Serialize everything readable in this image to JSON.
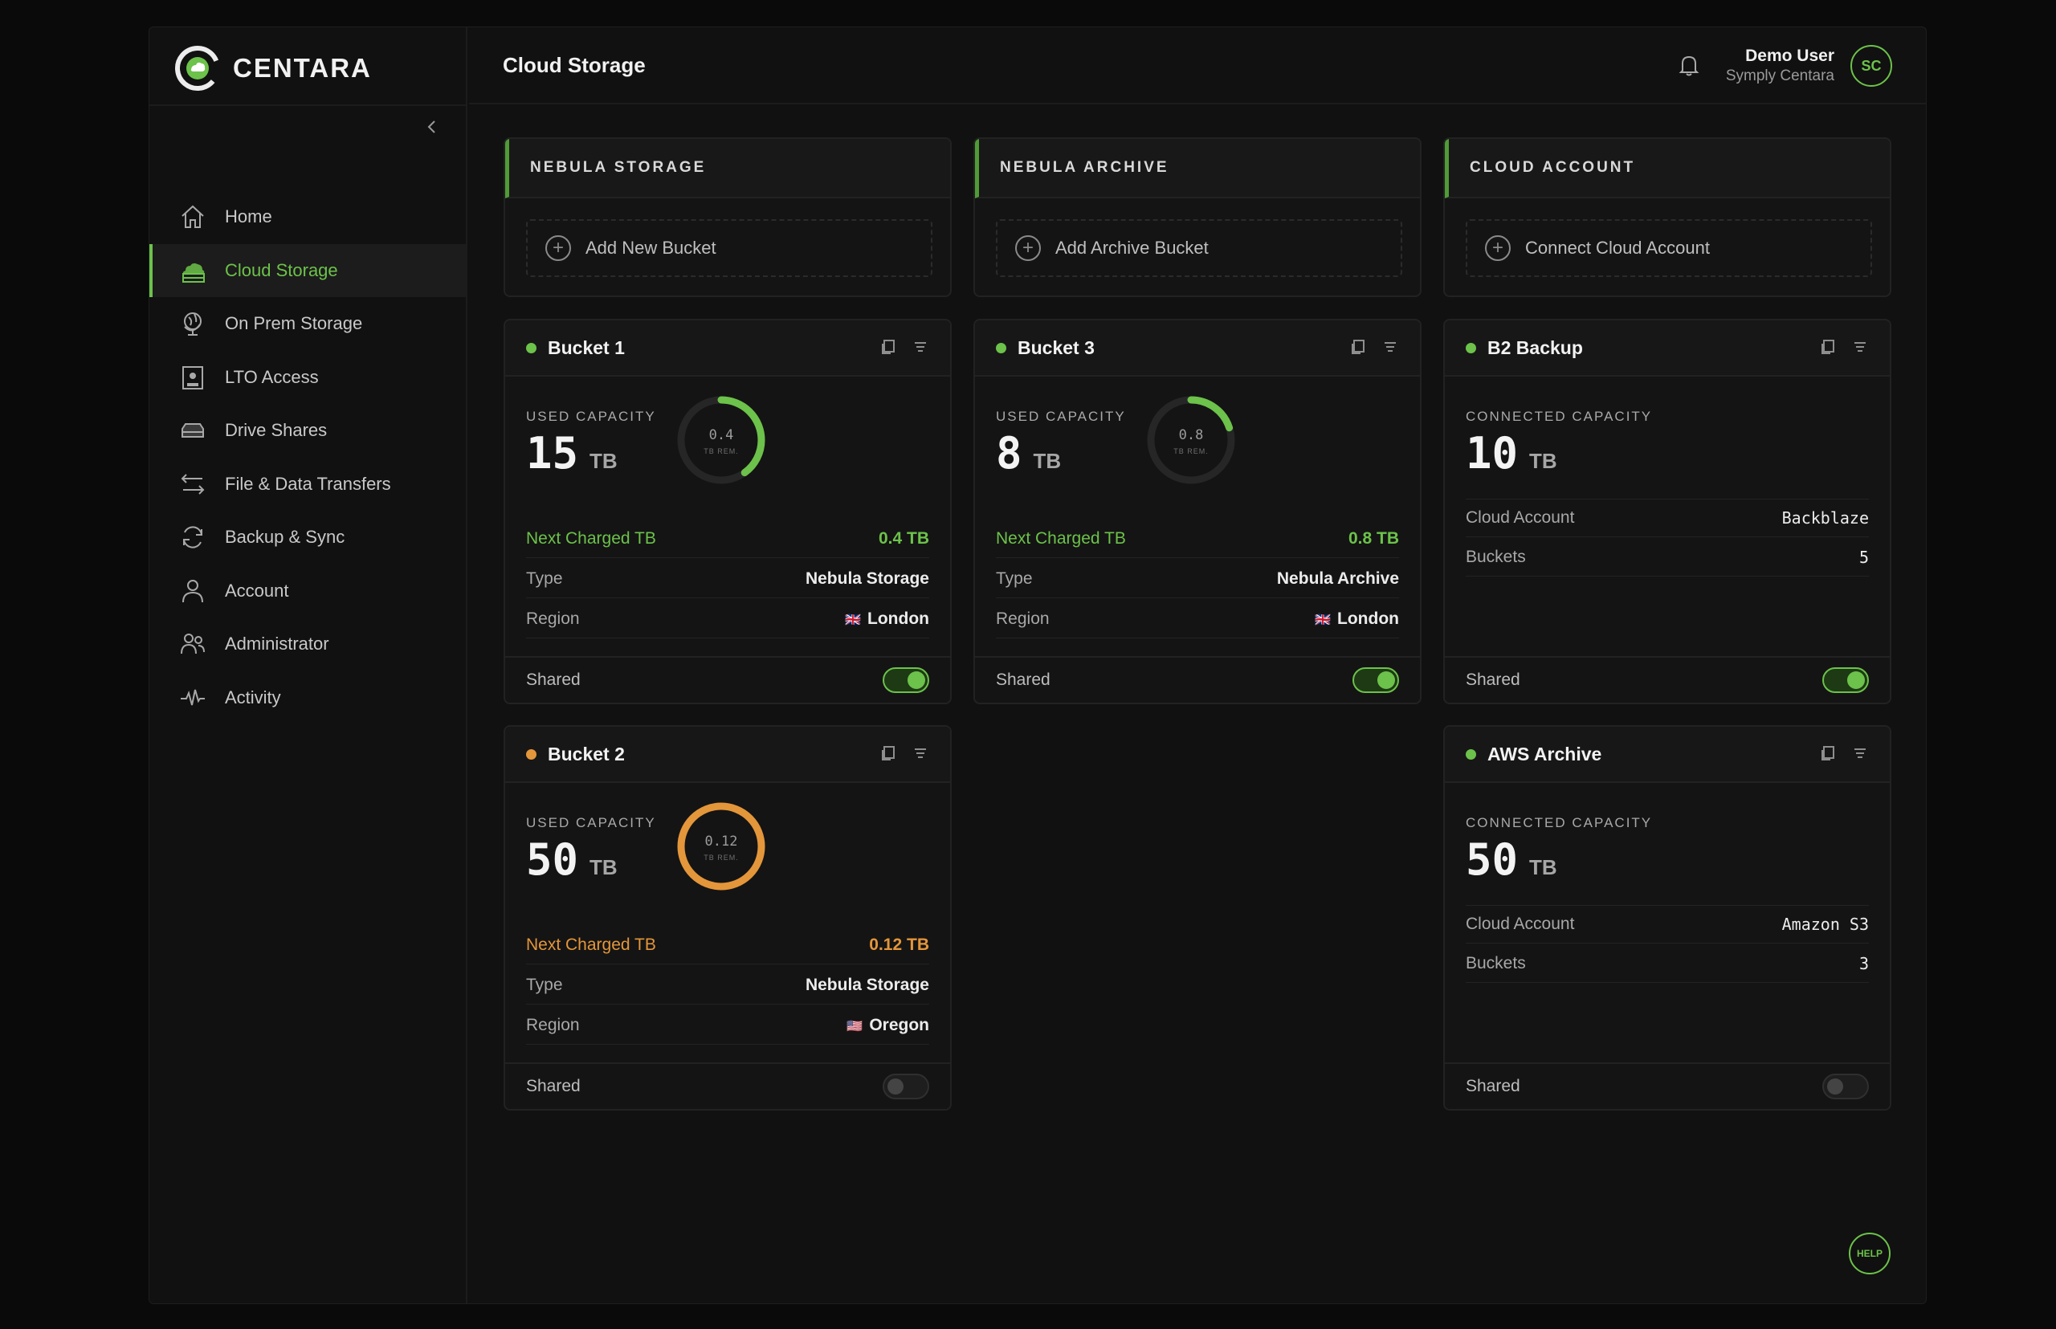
{
  "app": {
    "logo_text": "CENTARA",
    "page_title": "Cloud Storage"
  },
  "user": {
    "name": "Demo User",
    "org": "Symply Centara",
    "initials": "SC"
  },
  "sidebar": {
    "items": [
      {
        "label": "Home",
        "icon": "home-icon"
      },
      {
        "label": "Cloud Storage",
        "icon": "cloud-storage-icon"
      },
      {
        "label": "On Prem Storage",
        "icon": "globe-stand-icon"
      },
      {
        "label": "LTO Access",
        "icon": "tape-icon"
      },
      {
        "label": "Drive Shares",
        "icon": "drive-icon"
      },
      {
        "label": "File & Data Transfers",
        "icon": "transfer-icon"
      },
      {
        "label": "Backup & Sync",
        "icon": "sync-icon"
      },
      {
        "label": "Account",
        "icon": "user-icon"
      },
      {
        "label": "Administrator",
        "icon": "admin-icon"
      },
      {
        "label": "Activity",
        "icon": "activity-icon"
      }
    ],
    "active": "Cloud Storage"
  },
  "sections": [
    {
      "title": "NEBULA STORAGE",
      "action": "Add New Bucket"
    },
    {
      "title": "NEBULA ARCHIVE",
      "action": "Add Archive Bucket"
    },
    {
      "title": "CLOUD ACCOUNT",
      "action": "Connect Cloud Account"
    }
  ],
  "buckets": {
    "bucket1": {
      "name": "Bucket 1",
      "status_color": "#6cc24a",
      "capacity_label": "USED CAPACITY",
      "capacity": "15",
      "unit": "TB",
      "remaining": "0.4",
      "remaining_label": "TB REM.",
      "remaining_fraction": 0.4,
      "next_label": "Next Charged TB",
      "next_value": "0.4 TB",
      "type_label": "Type",
      "type": "Nebula Storage",
      "region_label": "Region",
      "region": "London",
      "region_flag": "🇬🇧",
      "shared_label": "Shared",
      "shared": true
    },
    "bucket3": {
      "name": "Bucket 3",
      "status_color": "#6cc24a",
      "capacity_label": "USED CAPACITY",
      "capacity": "8",
      "unit": "TB",
      "remaining": "0.8",
      "remaining_label": "TB REM.",
      "remaining_fraction": 0.2,
      "next_label": "Next Charged TB",
      "next_value": "0.8 TB",
      "type_label": "Type",
      "type": "Nebula Archive",
      "region_label": "Region",
      "region": "London",
      "region_flag": "🇬🇧",
      "shared_label": "Shared",
      "shared": true
    },
    "bucket2": {
      "name": "Bucket 2",
      "status_color": "#e4963a",
      "capacity_label": "USED CAPACITY",
      "capacity": "50",
      "unit": "TB",
      "remaining": "0.12",
      "remaining_label": "TB REM.",
      "remaining_fraction": 1.0,
      "next_label": "Next Charged TB",
      "next_value": "0.12 TB",
      "type_label": "Type",
      "type": "Nebula Storage",
      "region_label": "Region",
      "region": "Oregon",
      "region_flag": "🇺🇸",
      "shared_label": "Shared",
      "shared": false
    },
    "b2": {
      "name": "B2 Backup",
      "status_color": "#6cc24a",
      "capacity_label": "CONNECTED CAPACITY",
      "capacity": "10",
      "unit": "TB",
      "account_label": "Cloud Account",
      "account": "Backblaze",
      "buckets_label": "Buckets",
      "buckets": "5",
      "shared_label": "Shared",
      "shared": true
    },
    "aws": {
      "name": "AWS Archive",
      "status_color": "#6cc24a",
      "capacity_label": "CONNECTED CAPACITY",
      "capacity": "50",
      "unit": "TB",
      "account_label": "Cloud Account",
      "account": "Amazon S3",
      "buckets_label": "Buckets",
      "buckets": "3",
      "shared_label": "Shared",
      "shared": false
    }
  },
  "help_label": "HELP",
  "colors": {
    "accent": "#6cc24a",
    "warning": "#e4963a"
  }
}
